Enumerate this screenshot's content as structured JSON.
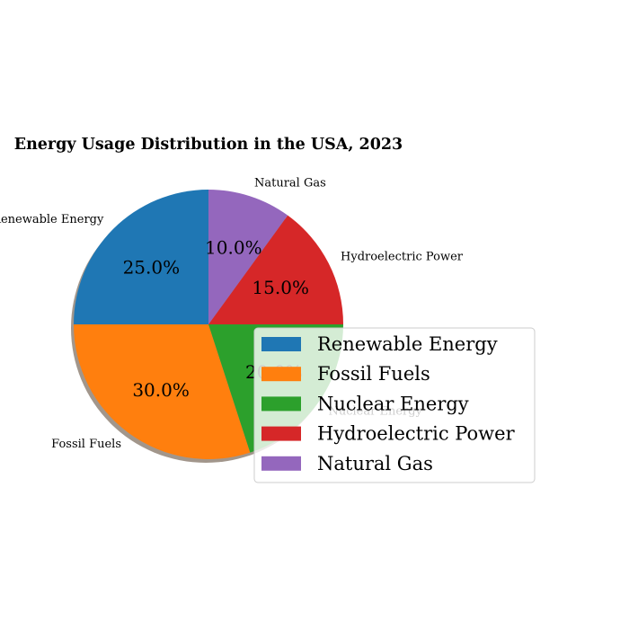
{
  "chart_data": {
    "type": "pie",
    "title": "Energy Usage Distribution in the USA, 2023",
    "categories": [
      "Renewable Energy",
      "Fossil Fuels",
      "Nuclear Energy",
      "Hydroelectric Power",
      "Natural Gas"
    ],
    "values": [
      25,
      30,
      20,
      15,
      10
    ],
    "percent_labels": [
      "25.0%",
      "30.0%",
      "20.0%",
      "15.0%",
      "10.0%"
    ],
    "colors": [
      "#1f77b4",
      "#ff7f0e",
      "#2ca02c",
      "#d62728",
      "#9467bd"
    ],
    "shadow": true,
    "legend": {
      "placement": "lower-right, overlapping pie",
      "entries": [
        "Renewable Energy",
        "Fossil Fuels",
        "Nuclear Energy",
        "Hydroelectric Power",
        "Natural Gas"
      ]
    }
  }
}
